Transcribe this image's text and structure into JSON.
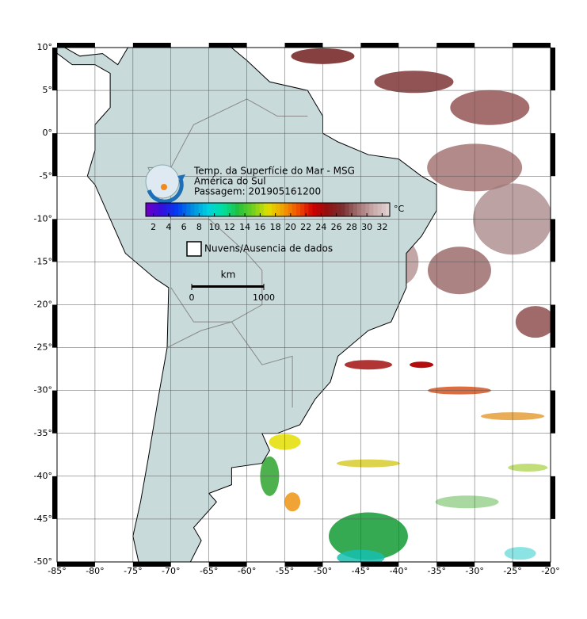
{
  "map": {
    "title_lines": [
      "Temp. da Superfície do Mar - MSG",
      "América do Sul",
      "Passagem: 201905161200"
    ],
    "colorbar": {
      "unit": "°C",
      "range": [
        1,
        33
      ],
      "ticks": [
        2,
        4,
        6,
        8,
        10,
        12,
        14,
        16,
        18,
        20,
        22,
        24,
        26,
        28,
        30,
        32
      ]
    },
    "legend": {
      "label": "Nuvens/Ausencia de dados"
    },
    "scale_bar": {
      "unit": "km",
      "ticks": [
        0,
        1000
      ]
    },
    "lon_ticks": [
      {
        "value": -85,
        "label": "-85°"
      },
      {
        "value": -80,
        "label": "-80°"
      },
      {
        "value": -75,
        "label": "-75°"
      },
      {
        "value": -70,
        "label": "-70°"
      },
      {
        "value": -65,
        "label": "-65°"
      },
      {
        "value": -60,
        "label": "-60°"
      },
      {
        "value": -55,
        "label": "-55°"
      },
      {
        "value": -50,
        "label": "-50°"
      },
      {
        "value": -45,
        "label": "-45°"
      },
      {
        "value": -40,
        "label": "-40°"
      },
      {
        "value": -35,
        "label": "-35°"
      },
      {
        "value": -30,
        "label": "-30°"
      },
      {
        "value": -25,
        "label": "-25°"
      },
      {
        "value": -20,
        "label": "-20°"
      }
    ],
    "lat_ticks": [
      {
        "value": 10,
        "label": "10°"
      },
      {
        "value": 5,
        "label": "5°"
      },
      {
        "value": 0,
        "label": "0°"
      },
      {
        "value": -5,
        "label": "-5°"
      },
      {
        "value": -10,
        "label": "-10°"
      },
      {
        "value": -15,
        "label": "-15°"
      },
      {
        "value": -20,
        "label": "-20°"
      },
      {
        "value": -25,
        "label": "-25°"
      },
      {
        "value": -30,
        "label": "-30°"
      },
      {
        "value": -35,
        "label": "-35°"
      },
      {
        "value": -40,
        "label": "-40°"
      },
      {
        "value": -45,
        "label": "-45°"
      },
      {
        "value": -50,
        "label": "-50°"
      }
    ]
  }
}
